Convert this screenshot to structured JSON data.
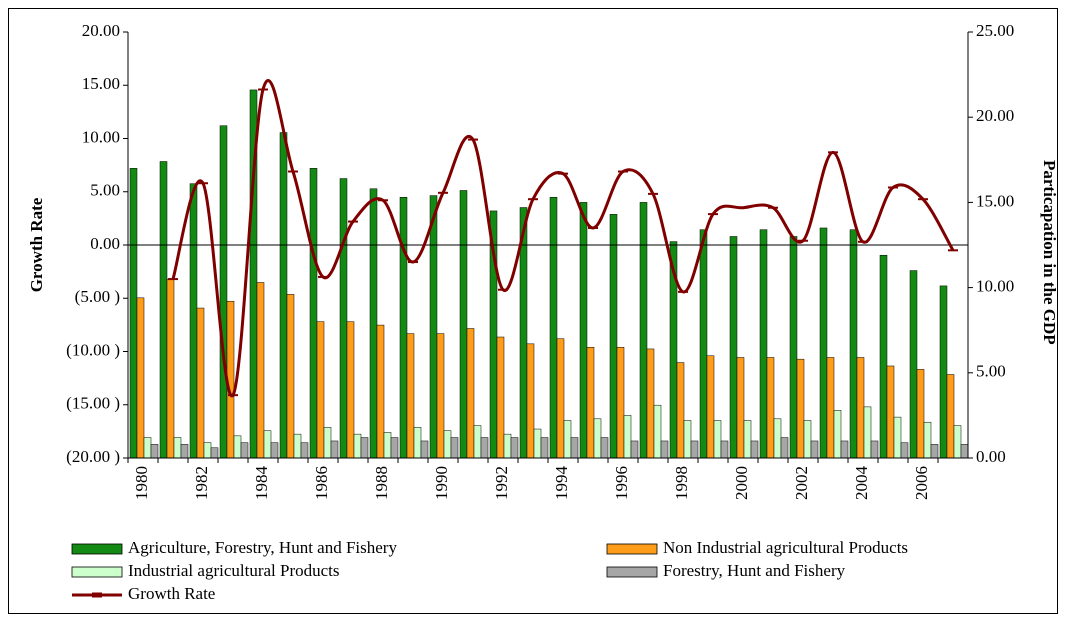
{
  "chart_data": {
    "type": "bar",
    "y_label": "Growth Rate",
    "y2_label": "Particapation in the GDP",
    "categories": [
      "1980",
      null,
      "1982",
      null,
      "1984",
      null,
      "1986",
      null,
      "1988",
      null,
      "1990",
      null,
      "1992",
      null,
      "1994",
      null,
      "1996",
      null,
      "1998",
      null,
      "2000",
      null,
      "2002",
      null,
      "2004",
      null,
      "2006",
      null
    ],
    "ylim": [
      -20,
      20
    ],
    "yticks": [
      {
        "value": -20,
        "label": "(20.00 )"
      },
      {
        "value": -15,
        "label": "(15.00 )"
      },
      {
        "value": -10,
        "label": "(10.00 )"
      },
      {
        "value": -5,
        "label": "(5.00 )"
      },
      {
        "value": 0,
        "label": "0.00"
      },
      {
        "value": 5,
        "label": "5.00"
      },
      {
        "value": 10,
        "label": "10.00"
      },
      {
        "value": 15,
        "label": "15.00"
      },
      {
        "value": 20,
        "label": "20.00"
      }
    ],
    "y2lim": [
      0,
      25
    ],
    "y2ticks": [
      {
        "value": 0,
        "label": "0.00"
      },
      {
        "value": 5,
        "label": "5.00"
      },
      {
        "value": 10,
        "label": "10.00"
      },
      {
        "value": 15,
        "label": "15.00"
      },
      {
        "value": 20,
        "label": "20.00"
      },
      {
        "value": 25,
        "label": "25.00"
      }
    ],
    "grid": false,
    "series": [
      {
        "name": "Agriculture, Forestry, Hunt and Fishery",
        "color": "#138a13",
        "axis": "y2",
        "values": [
          17.0,
          17.4,
          16.1,
          19.5,
          21.6,
          19.1,
          17.0,
          16.4,
          15.8,
          15.3,
          15.4,
          15.7,
          14.5,
          14.7,
          15.3,
          15.0,
          14.3,
          15.0,
          12.7,
          13.4,
          13.0,
          13.4,
          13.0,
          13.5,
          13.4,
          11.9,
          11.0,
          10.1
        ]
      },
      {
        "name": "Non Industrial agricultural Products",
        "color": "#ff9c1a",
        "axis": "y2",
        "values": [
          9.4,
          10.5,
          8.8,
          9.2,
          10.3,
          9.6,
          8.0,
          8.0,
          7.8,
          7.3,
          7.3,
          7.6,
          7.1,
          6.7,
          7.0,
          6.5,
          6.5,
          6.4,
          5.6,
          6.0,
          5.9,
          5.9,
          5.8,
          5.9,
          5.9,
          5.4,
          5.2,
          4.9
        ]
      },
      {
        "name": "Industrial agricultural Products",
        "color": "#ccffcc",
        "axis": "y2",
        "values": [
          1.2,
          1.2,
          0.9,
          1.3,
          1.6,
          1.4,
          1.8,
          1.4,
          1.5,
          1.8,
          1.6,
          1.9,
          1.4,
          1.7,
          2.2,
          2.3,
          2.5,
          3.1,
          2.2,
          2.2,
          2.2,
          2.3,
          2.2,
          2.8,
          3.0,
          2.4,
          2.1,
          1.9
        ]
      },
      {
        "name": "Forestry, Hunt and Fishery",
        "color": "#a6a6a6",
        "axis": "y2",
        "values": [
          0.8,
          0.8,
          0.6,
          0.9,
          0.9,
          0.9,
          1.0,
          1.2,
          1.2,
          1.0,
          1.2,
          1.2,
          1.2,
          1.2,
          1.2,
          1.2,
          1.0,
          1.0,
          1.0,
          1.0,
          1.0,
          1.2,
          1.0,
          1.0,
          1.0,
          0.9,
          0.8,
          0.8
        ]
      },
      {
        "name": "Growth Rate",
        "color": "#800000",
        "type": "line",
        "values": [
          null,
          -3.2,
          5.8,
          -14.1,
          14.6,
          6.9,
          -3.0,
          2.2,
          4.2,
          -1.6,
          4.9,
          9.9,
          -4.2,
          4.3,
          6.7,
          1.6,
          6.9,
          4.8,
          -4.4,
          2.9,
          3.5,
          3.5,
          0.4,
          8.7,
          0.3,
          5.4,
          4.3,
          -0.5
        ]
      }
    ]
  }
}
